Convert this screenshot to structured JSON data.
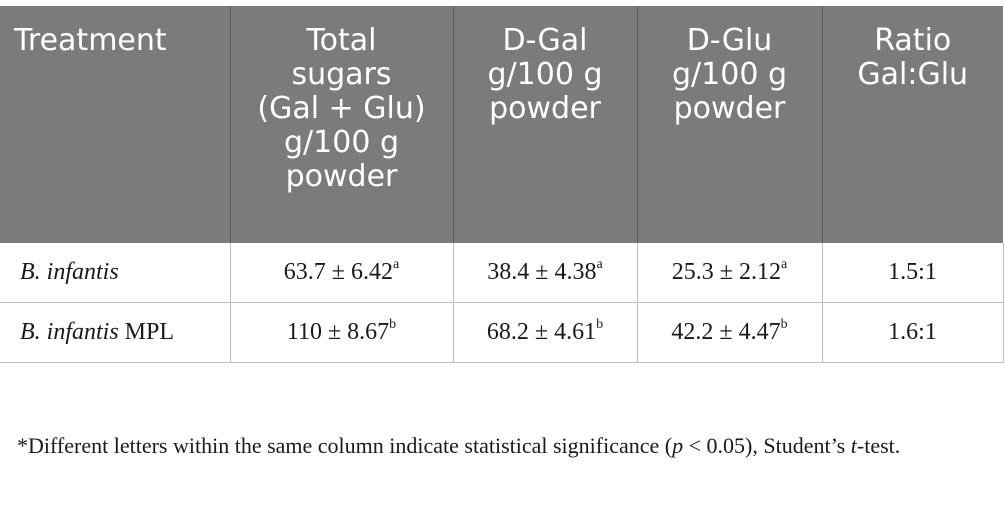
{
  "table": {
    "headers": [
      [
        "Treatment"
      ],
      [
        "Total",
        "sugars",
        "(Gal + Glu)",
        "g/100 g",
        "powder"
      ],
      [
        "D-Gal",
        "g/100 g",
        "powder"
      ],
      [
        "D-Glu",
        "g/100 g",
        "powder"
      ],
      [
        "Ratio",
        "Gal:Glu"
      ]
    ],
    "rows": [
      {
        "treatment_italic": "B. infantis",
        "treatment_suffix": "",
        "total": "63.7 ± 6.42",
        "total_sup": "a",
        "gal": "38.4 ± 4.38",
        "gal_sup": "a",
        "glu": "25.3 ± 2.12",
        "glu_sup": "a",
        "ratio": "1.5:1"
      },
      {
        "treatment_italic": "B. infantis",
        "treatment_suffix": "MPL",
        "total": "110 ± 8.67",
        "total_sup": "b",
        "gal": "68.2 ± 4.61",
        "gal_sup": "b",
        "glu": "42.2 ± 4.47",
        "glu_sup": "b",
        "ratio": "1.6:1"
      }
    ]
  },
  "footnote": {
    "part1": "*Different letters within the same column indicate statistical significance (",
    "p": "p",
    "part2": " < 0.05), Student’s ",
    "t": "t",
    "part3": "-test."
  }
}
